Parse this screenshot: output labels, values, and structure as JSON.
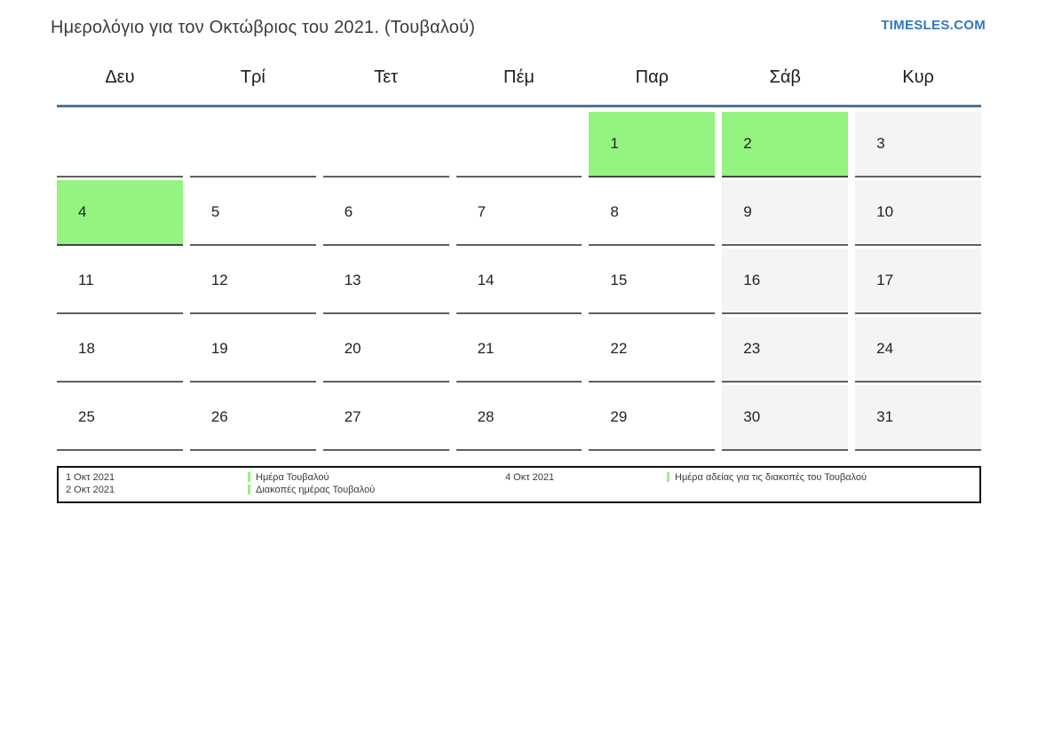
{
  "page": {
    "title": "Ημερολόγιο για τον Οκτώβριος του 2021. (Τουβαλού)",
    "brand": "TIMESLES.COM"
  },
  "colors": {
    "holiday_green": "#93f47f",
    "weekend_gray": "#f4f4f4",
    "header_line_blue": "#52729c",
    "brand_blue": "#2e78c2",
    "cell_border_gray": "#606060",
    "text_dark": "#222222"
  },
  "calendar": {
    "day_names": [
      "Δευ",
      "Τρί",
      "Τετ",
      "Πέμ",
      "Παρ",
      "Σάβ",
      "Κυρ"
    ],
    "weeks": [
      [
        {
          "day": "",
          "type": "empty"
        },
        {
          "day": "",
          "type": "empty"
        },
        {
          "day": "",
          "type": "empty"
        },
        {
          "day": "",
          "type": "empty"
        },
        {
          "day": "1",
          "type": "holiday"
        },
        {
          "day": "2",
          "type": "holiday"
        },
        {
          "day": "3",
          "type": "weekend"
        }
      ],
      [
        {
          "day": "4",
          "type": "holiday"
        },
        {
          "day": "5",
          "type": "weekday"
        },
        {
          "day": "6",
          "type": "weekday"
        },
        {
          "day": "7",
          "type": "weekday"
        },
        {
          "day": "8",
          "type": "weekday"
        },
        {
          "day": "9",
          "type": "weekend"
        },
        {
          "day": "10",
          "type": "weekend"
        }
      ],
      [
        {
          "day": "11",
          "type": "weekday"
        },
        {
          "day": "12",
          "type": "weekday"
        },
        {
          "day": "13",
          "type": "weekday"
        },
        {
          "day": "14",
          "type": "weekday"
        },
        {
          "day": "15",
          "type": "weekday"
        },
        {
          "day": "16",
          "type": "weekend"
        },
        {
          "day": "17",
          "type": "weekend"
        }
      ],
      [
        {
          "day": "18",
          "type": "weekday"
        },
        {
          "day": "19",
          "type": "weekday"
        },
        {
          "day": "20",
          "type": "weekday"
        },
        {
          "day": "21",
          "type": "weekday"
        },
        {
          "day": "22",
          "type": "weekday"
        },
        {
          "day": "23",
          "type": "weekend"
        },
        {
          "day": "24",
          "type": "weekend"
        }
      ],
      [
        {
          "day": "25",
          "type": "weekday"
        },
        {
          "day": "26",
          "type": "weekday"
        },
        {
          "day": "27",
          "type": "weekday"
        },
        {
          "day": "28",
          "type": "weekday"
        },
        {
          "day": "29",
          "type": "weekday"
        },
        {
          "day": "30",
          "type": "weekend"
        },
        {
          "day": "31",
          "type": "weekend"
        }
      ]
    ]
  },
  "legend": {
    "groups": [
      {
        "entries": [
          {
            "date": "1 Οκτ 2021",
            "label": "Ημέρα Τουβαλού"
          },
          {
            "date": "2 Οκτ 2021",
            "label": "Διακοπές ημέρας Τουβαλού"
          }
        ]
      },
      {
        "entries": [
          {
            "date": "4 Οκτ 2021",
            "label": "Ημέρα αδείας για τις διακοπές του Τουβαλού"
          }
        ]
      }
    ]
  }
}
